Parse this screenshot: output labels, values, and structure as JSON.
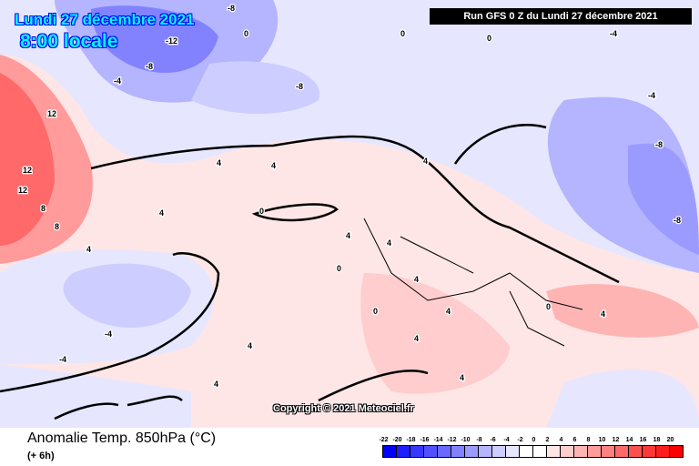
{
  "header": {
    "date": "Lundi 27 décembre 2021",
    "hour": "8:00 locale",
    "run": "Run GFS 0 Z du Lundi 27 décembre 2021"
  },
  "copyright": "Copyright © 2021 Meteociel.fr",
  "footer": {
    "title": "Anomalie Temp. 850hPa (°C)",
    "subtitle": "(+ 6h)"
  },
  "colorbar": {
    "ticks": [
      "-22",
      "-20",
      "-18",
      "-16",
      "-14",
      "-12",
      "-10",
      "-8",
      "-6",
      "-4",
      "-2",
      "0",
      "2",
      "4",
      "6",
      "8",
      "10",
      "12",
      "14",
      "16",
      "18",
      "20"
    ],
    "colors": [
      "#0000ff",
      "#1e1eff",
      "#3737ff",
      "#5050ff",
      "#6969ff",
      "#8282ff",
      "#9b9bff",
      "#b4b4ff",
      "#cdcdff",
      "#e6e6ff",
      "#ffffff",
      "#ffffff",
      "#ffe6e6",
      "#ffcdcd",
      "#ffb4b4",
      "#ff9b9b",
      "#ff8282",
      "#ff6969",
      "#ff5050",
      "#ff3737",
      "#ff1e1e",
      "#ff0000"
    ]
  },
  "map": {
    "contour_labels": [
      "-8",
      "-12",
      "-8",
      "-4",
      "0",
      "12",
      "12",
      "12",
      "8",
      "8",
      "4",
      "4",
      "4",
      "4",
      "0",
      "0",
      "-4",
      "-4",
      "-8",
      "-8",
      "-4",
      "4",
      "4",
      "4",
      "0",
      "4",
      "4",
      "4",
      "0",
      "-4",
      "-8",
      "0",
      "0",
      "4",
      "4",
      "4",
      "4"
    ]
  }
}
